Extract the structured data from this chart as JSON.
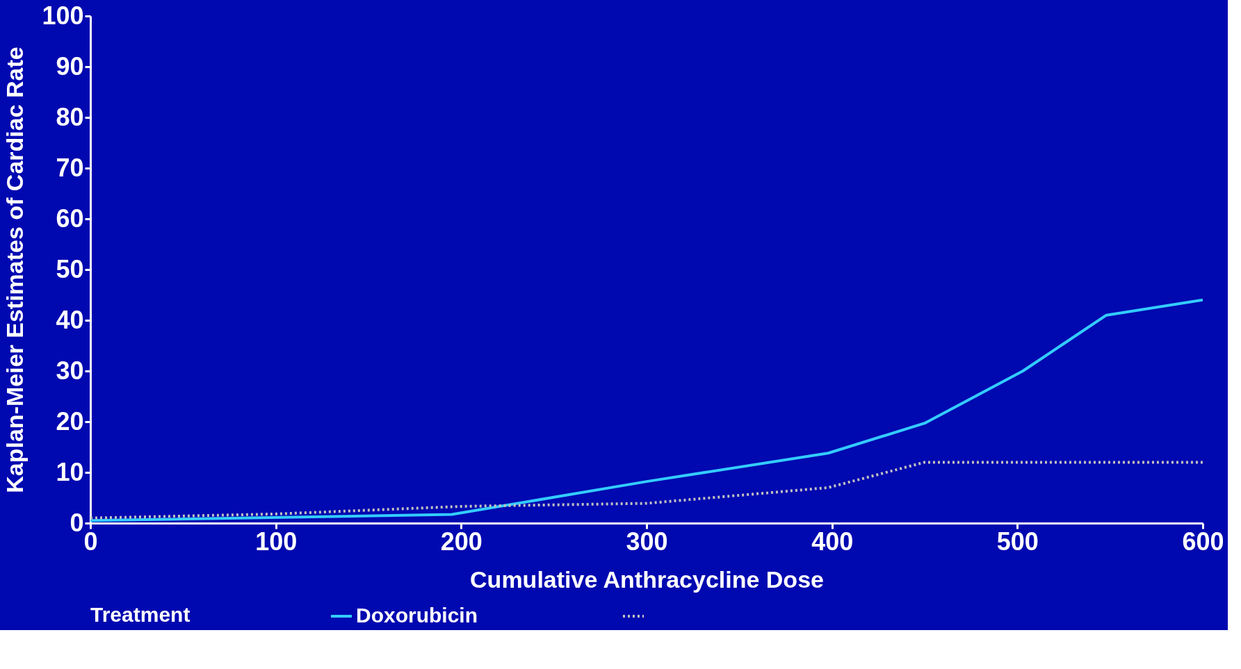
{
  "chart_data": {
    "type": "line",
    "xlabel": "Cumulative Anthracycline Dose",
    "ylabel": "Kaplan-Meier Estimates of Cardiac Rate",
    "legend_title": "Treatment",
    "legend": "bottom",
    "grid": false,
    "marker": "none",
    "xlim": [
      0,
      600
    ],
    "xticks": [
      0,
      100,
      200,
      300,
      400,
      500,
      600
    ],
    "ylim": [
      0,
      100
    ],
    "yticks": [
      0,
      10,
      20,
      30,
      40,
      50,
      60,
      70,
      80,
      90,
      100
    ],
    "series": [
      {
        "name": "Doxorubicin",
        "color": "#33ccff",
        "line_style": "solid",
        "x": [
          0,
          195,
          300,
          398,
          450,
          503,
          548,
          600
        ],
        "values": [
          0.5,
          1.7,
          8.2,
          13.8,
          19.7,
          30,
          41,
          44
        ]
      },
      {
        "color": "#c0c0c0",
        "line_style": "dotted",
        "x": [
          0,
          100,
          200,
          300,
          398,
          450,
          600
        ],
        "values": [
          1,
          1.8,
          3.3,
          3.9,
          7,
          12,
          12
        ]
      }
    ]
  }
}
